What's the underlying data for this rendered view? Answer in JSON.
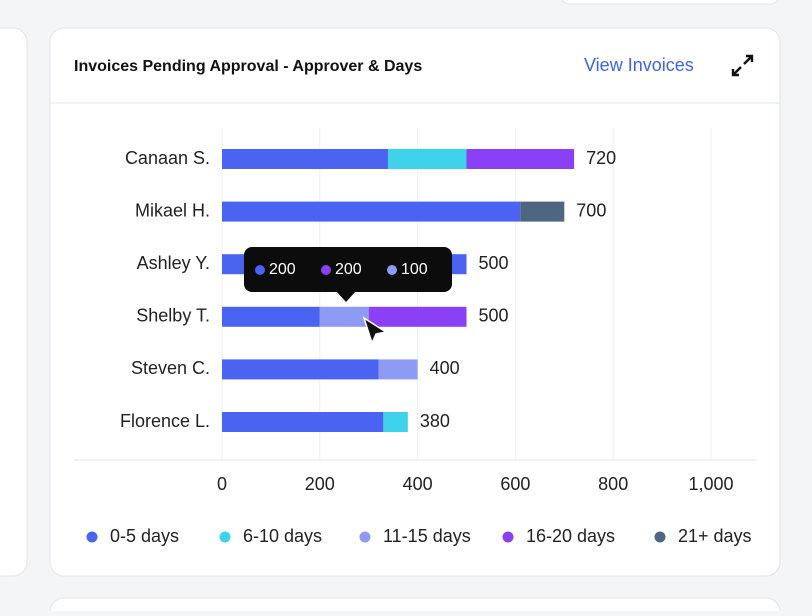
{
  "chart_data": {
    "type": "stacked-barh",
    "title": "Invoices Pending Approval - Approver & Days",
    "link": "View Invoices",
    "categories": [
      "Canaan S.",
      "Mikael H.",
      "Ashley Y.",
      "Shelby T.",
      "Steven C.",
      "Florence L."
    ],
    "series": [
      {
        "name": "0-5 days",
        "color": "#4a63f0",
        "values": [
          340,
          610,
          500,
          200,
          320,
          330
        ]
      },
      {
        "name": "6-10 days",
        "color": "#3ed3ea",
        "values": [
          160,
          0,
          0,
          0,
          0,
          50
        ]
      },
      {
        "name": "11-15 days",
        "color": "#8e9bf5",
        "values": [
          0,
          0,
          0,
          100,
          80,
          0
        ]
      },
      {
        "name": "16-20 days",
        "color": "#8a40f5",
        "values": [
          220,
          0,
          0,
          200,
          0,
          0
        ]
      },
      {
        "name": "21+ days",
        "color": "#4f6680",
        "values": [
          0,
          90,
          0,
          0,
          0,
          0
        ]
      }
    ],
    "totals": [
      720,
      700,
      500,
      500,
      400,
      380
    ],
    "xlim": [
      0,
      1000
    ],
    "xticks": [
      0,
      200,
      400,
      600,
      800,
      {
        "value": 1000,
        "label": "1,000"
      }
    ],
    "grid": true,
    "tooltip": {
      "category": 3,
      "series": [
        0,
        3,
        2
      ]
    }
  }
}
